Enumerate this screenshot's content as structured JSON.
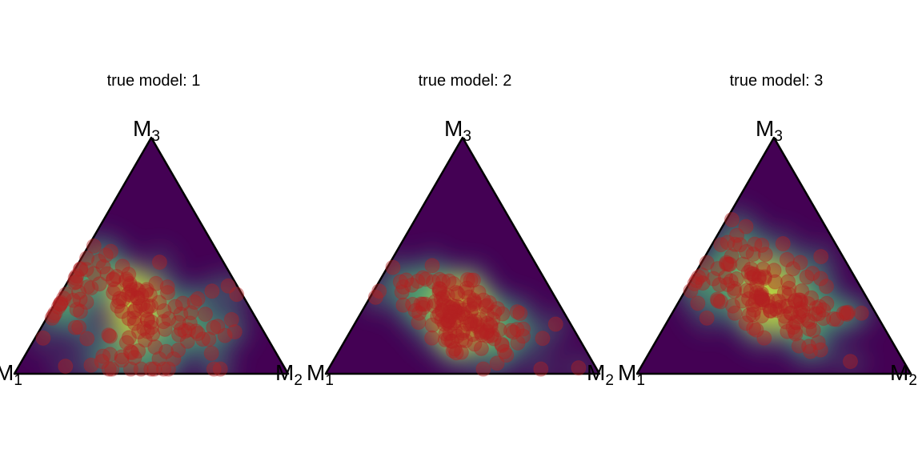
{
  "chart_data": [
    {
      "type": "scatter",
      "subtype": "ternary density with points",
      "title": "true  model: 1",
      "vertices": {
        "left": "M",
        "left_sub": "1",
        "right": "M",
        "right_sub": "2",
        "top": "M",
        "top_sub": "3"
      },
      "density_peak": {
        "m1": 0.42,
        "m2": 0.3,
        "m3": 0.28
      },
      "density_spread": 0.11,
      "point_count": 150,
      "point_color": "#b22222"
    },
    {
      "type": "scatter",
      "subtype": "ternary density with points",
      "title": "true  model: 2",
      "vertices": {
        "left": "M",
        "left_sub": "1",
        "right": "M",
        "right_sub": "2",
        "top": "M",
        "top_sub": "3"
      },
      "density_peak": {
        "m1": 0.38,
        "m2": 0.37,
        "m3": 0.25
      },
      "density_spread": 0.07,
      "point_count": 150,
      "point_color": "#b22222"
    },
    {
      "type": "scatter",
      "subtype": "ternary density with points",
      "title": "true  model: 3",
      "vertices": {
        "left": "M",
        "left_sub": "1",
        "right": "M",
        "right_sub": "2",
        "top": "M",
        "top_sub": "3"
      },
      "density_peak": {
        "m1": 0.35,
        "m2": 0.32,
        "m3": 0.33
      },
      "density_spread": 0.09,
      "point_count": 150,
      "point_color": "#b22222"
    }
  ],
  "colors": {
    "colormap": "viridis",
    "low": "#440154",
    "mid": "#21908d",
    "high": "#fde725",
    "points": "#b22222"
  }
}
